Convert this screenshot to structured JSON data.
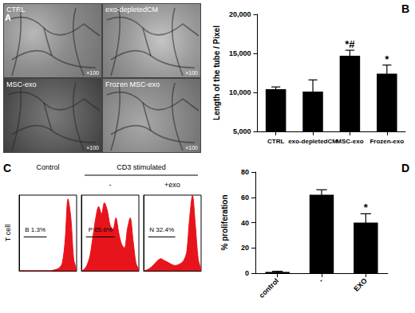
{
  "micrographs": {
    "panel": "A",
    "images": [
      {
        "caption": "CTRL",
        "magnification": "×100"
      },
      {
        "caption": "exo-depletedCM",
        "magnification": "×100"
      },
      {
        "caption": "MSC-exo",
        "magnification": "×100"
      },
      {
        "caption": "Frozen MSC-exo",
        "magnification": "×100"
      }
    ]
  },
  "chart_data": [
    {
      "type": "bar",
      "panel": "B",
      "y_label": "Length of the tube / Pixel",
      "categories": [
        "CTRL",
        "exo-depletedCM",
        "MSC-exo",
        "Frozen-exo"
      ],
      "values": [
        10400,
        10100,
        14700,
        12400
      ],
      "errors": [
        300,
        1500,
        700,
        1100
      ],
      "annotations": [
        null,
        null,
        "*#",
        "*"
      ],
      "color": "#000000",
      "ylim": [
        5000,
        20000
      ],
      "yticks": [
        5000,
        10000,
        15000,
        20000
      ],
      "grid": false
    },
    {
      "type": "histogram",
      "panel": "C",
      "y_label": "T cell",
      "tick_labels": false,
      "xlim": [
        0,
        100
      ],
      "ylim": [
        0,
        100
      ],
      "columns": [
        {
          "header": "Control",
          "panels": [
            {
              "color": "#e8141b",
              "x": [
                0,
                5,
                10,
                15,
                20,
                25,
                30,
                35,
                40,
                45,
                50,
                55,
                60,
                65,
                70,
                75,
                80,
                85,
                90,
                95,
                100
              ],
              "values": [
                0,
                0,
                0,
                0,
                0,
                0,
                0,
                0,
                0,
                0,
                0,
                0,
                1,
                2,
                4,
                10,
                40,
                95,
                70,
                15,
                2
              ],
              "gate": {
                "name": "B",
                "value": 1.3,
                "label": "1.3%",
                "range": [
                  8,
                  48
                ]
              }
            }
          ]
        },
        {
          "header": "CD3 stimulated",
          "panels": [
            {
              "title": "-",
              "color": "#e8141b",
              "x": [
                0,
                5,
                10,
                15,
                20,
                25,
                30,
                35,
                40,
                45,
                50,
                55,
                60,
                65,
                70,
                75,
                80,
                85,
                90,
                95,
                100
              ],
              "values": [
                0,
                2,
                8,
                20,
                45,
                70,
                85,
                75,
                90,
                80,
                60,
                55,
                70,
                50,
                35,
                30,
                55,
                70,
                40,
                10,
                2
              ],
              "gate": {
                "name": "P",
                "value": 65.6,
                "label": "65.6%",
                "range": [
                  8,
                  58
                ]
              }
            },
            {
              "title": "+exo",
              "color": "#e8141b",
              "x": [
                0,
                5,
                10,
                15,
                20,
                25,
                30,
                35,
                40,
                45,
                50,
                55,
                60,
                65,
                70,
                75,
                80,
                85,
                90,
                95,
                100
              ],
              "values": [
                0,
                1,
                3,
                6,
                10,
                14,
                16,
                14,
                12,
                10,
                8,
                7,
                8,
                10,
                14,
                25,
                70,
                100,
                60,
                15,
                2
              ],
              "gate": {
                "name": "N",
                "value": 32.4,
                "label": "32.4%",
                "range": [
                  8,
                  55
                ]
              }
            }
          ]
        }
      ]
    },
    {
      "type": "bar",
      "panel": "D",
      "y_label": "% proliferation",
      "categories": [
        "control",
        "-",
        "EXO"
      ],
      "values": [
        1,
        62,
        40
      ],
      "errors": [
        0.5,
        4,
        7
      ],
      "annotations": [
        null,
        null,
        "*"
      ],
      "color": "#000000",
      "ylim": [
        0,
        80
      ],
      "yticks": [
        0,
        20,
        40,
        60,
        80
      ],
      "grid": false
    }
  ]
}
